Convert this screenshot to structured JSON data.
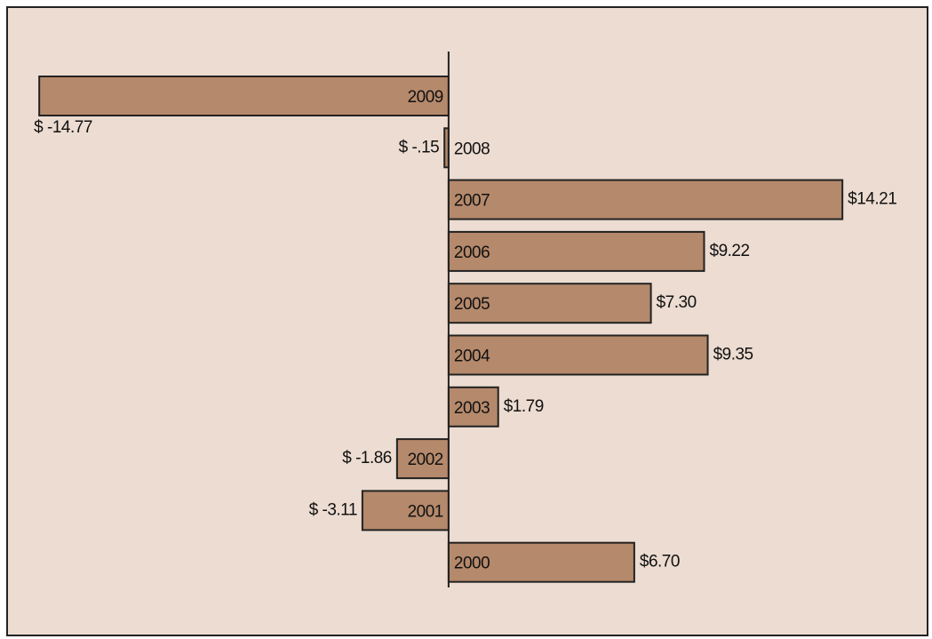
{
  "chart_data": {
    "type": "bar",
    "orientation": "horizontal",
    "categories": [
      "2009",
      "2008",
      "2007",
      "2006",
      "2005",
      "2004",
      "2003",
      "2002",
      "2001",
      "2000"
    ],
    "values": [
      -14.77,
      -0.15,
      14.21,
      9.22,
      7.3,
      9.35,
      1.79,
      -1.86,
      -3.11,
      6.7
    ],
    "value_labels": [
      "$ -14.77",
      "$ -.15",
      "$14.21",
      "$9.22",
      "$7.30",
      "$9.35",
      "$1.79",
      "$ -1.86",
      "$ -3.11",
      "$6.70"
    ],
    "color": "#b5896b",
    "xlim": [
      -15,
      16
    ]
  }
}
